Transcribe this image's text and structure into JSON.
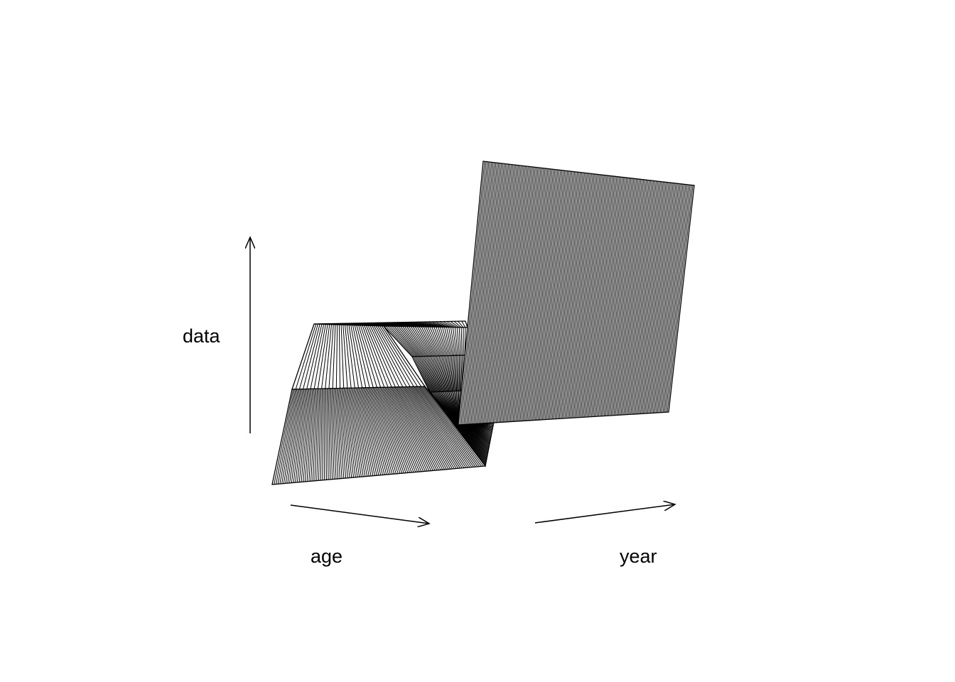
{
  "chart_data": {
    "type": "surface",
    "view": "perspective",
    "axes": {
      "x": {
        "label": "age"
      },
      "y": {
        "label": "year"
      },
      "z": {
        "label": "data"
      }
    },
    "ticks": false,
    "grid": false,
    "surface_style": "hatched wireframe, black on white"
  },
  "colors": {
    "background": "#ffffff",
    "ink": "#000000"
  }
}
